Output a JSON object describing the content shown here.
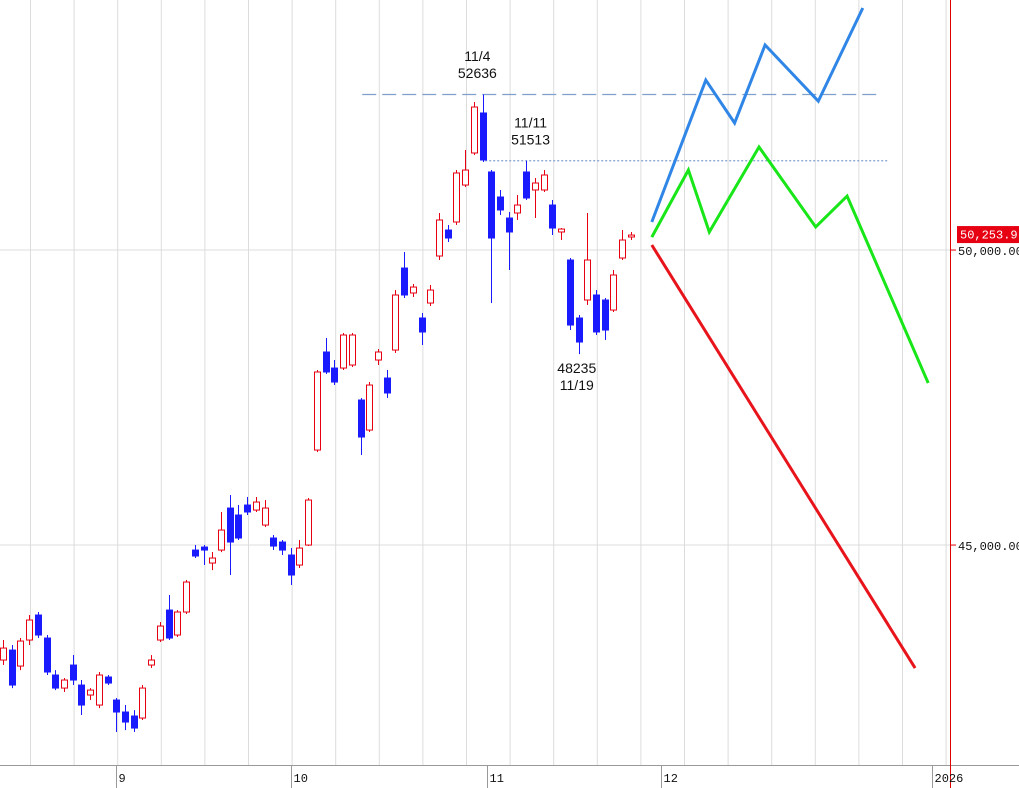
{
  "chart_data": {
    "type": "candlestick",
    "up_color": "#e60012",
    "down_color": "#1a1aff",
    "candles": {
      "open": [
        43051,
        43220,
        42949,
        43390,
        43814,
        43424,
        42797,
        42576,
        42966,
        42627,
        42458,
        42288,
        42763,
        42373,
        42170,
        42102,
        42068,
        42966,
        43390,
        43898,
        43475,
        43865,
        44915,
        44966,
        44695,
        44915,
        45627,
        45509,
        45678,
        45593,
        45339,
        45119,
        45051,
        44831,
        44661,
        45000,
        46610,
        48272,
        48000,
        48000,
        48051,
        47458,
        46949,
        48136,
        47831,
        48305,
        49695,
        49272,
        48848,
        49102,
        49899,
        50339,
        50475,
        51102,
        51645,
        52323,
        51323,
        50899,
        50543,
        50628,
        51323,
        51018,
        51018,
        50763,
        50306,
        49831,
        48848,
        49153,
        49238,
        49153,
        48983,
        49865,
        50221
      ],
      "high": [
        43390,
        43305,
        43424,
        43814,
        43865,
        43475,
        42881,
        42746,
        43136,
        42712,
        42576,
        42848,
        42797,
        42407,
        42288,
        42203,
        42627,
        43136,
        43695,
        44153,
        43898,
        44407,
        45000,
        45000,
        44882,
        45560,
        45848,
        45678,
        45814,
        45814,
        45763,
        45170,
        45085,
        44949,
        45085,
        45797,
        47966,
        48509,
        48136,
        48594,
        48594,
        47492,
        47763,
        48322,
        47966,
        49322,
        49967,
        49424,
        48933,
        49407,
        50628,
        50424,
        51356,
        51695,
        52509,
        52636,
        51356,
        51018,
        50645,
        50933,
        51513,
        51221,
        51356,
        50848,
        50373,
        49865,
        48899,
        50628,
        49322,
        49187,
        49661,
        50339,
        50305
      ],
      "low": [
        42966,
        42576,
        42881,
        43305,
        43424,
        42797,
        42542,
        42509,
        42627,
        42119,
        42373,
        42237,
        42627,
        41831,
        41864,
        41831,
        42034,
        42915,
        43356,
        43390,
        43441,
        43831,
        44780,
        44661,
        44576,
        44881,
        44492,
        45085,
        45509,
        45560,
        45305,
        44915,
        44831,
        44322,
        44610,
        44983,
        46577,
        47899,
        47712,
        47966,
        48017,
        46526,
        46916,
        48051,
        47492,
        48255,
        49187,
        49204,
        48390,
        49051,
        49831,
        50136,
        50424,
        51068,
        51611,
        51492,
        49102,
        50594,
        49662,
        50509,
        50848,
        50543,
        50984,
        50255,
        50170,
        48644,
        48235,
        49068,
        48560,
        48475,
        48950,
        49831,
        50170
      ],
      "close": [
        43254,
        42627,
        43373,
        43729,
        43475,
        42848,
        42576,
        42712,
        42712,
        42288,
        42542,
        42797,
        42661,
        42170,
        42000,
        41898,
        42576,
        43051,
        43627,
        43424,
        43865,
        44373,
        44814,
        44915,
        44780,
        45254,
        45051,
        45119,
        45560,
        45729,
        45627,
        44983,
        44915,
        44492,
        44949,
        45763,
        47933,
        47933,
        47763,
        48560,
        48560,
        46831,
        47712,
        48272,
        47577,
        49238,
        49238,
        49373,
        48611,
        49322,
        50509,
        50204,
        51306,
        51356,
        52424,
        51526,
        50204,
        50679,
        50306,
        50763,
        50882,
        51136,
        51272,
        50373,
        50356,
        48729,
        48441,
        49831,
        48611,
        48644,
        49577,
        50170,
        50253.9
      ]
    },
    "lines": [
      {
        "color": "#2f86e6",
        "x": [
          74.4,
          80.6,
          83.9,
          87.4,
          93.5,
          98.6
        ],
        "values": [
          50475,
          52881,
          52153,
          53475,
          52525,
          54102
        ]
      },
      {
        "color": "#19e619",
        "x": [
          74.4,
          78.6,
          81,
          86.7,
          93.2,
          96.8,
          106.1
        ],
        "values": [
          50220,
          51356,
          50305,
          51746,
          50390,
          50915,
          47746
        ]
      },
      {
        "color": "#e8141c",
        "x": [
          74.4,
          104.6
        ],
        "values": [
          50085,
          42915
        ]
      }
    ],
    "hlines": [
      {
        "value": 52636,
        "style": "dashed",
        "color": "#7f9fcc",
        "x": [
          41.2,
          100.3
        ]
      },
      {
        "value": 51513,
        "style": "dotted",
        "color": "#7f9fcc",
        "x": [
          55.3,
          101.4
        ]
      }
    ],
    "annotations": [
      {
        "date": "11/4",
        "value": 52636,
        "x": 54.4,
        "placement": "above"
      },
      {
        "date": "11/11",
        "value": 51513,
        "x": 60.5,
        "placement": "above"
      },
      {
        "date": "11/19",
        "value": 48235,
        "x": 65.8,
        "placement": "below"
      }
    ],
    "last_price": {
      "value": 50253.9,
      "label": "50,253.9"
    },
    "xlim": [
      -0.34,
      108.6
    ],
    "xticks": [
      {
        "value": 13,
        "label": "9"
      },
      {
        "value": 33,
        "label": "10"
      },
      {
        "value": 55.5,
        "label": "11"
      },
      {
        "value": 75.5,
        "label": "12"
      },
      {
        "value": 106.5,
        "label": "2026"
      }
    ],
    "ylim": [
      41272,
      54238
    ],
    "yticks": [
      {
        "value": 45000,
        "label": "45,000.00"
      },
      {
        "value": 50000,
        "label": "50,000.00"
      }
    ],
    "grid": true
  }
}
